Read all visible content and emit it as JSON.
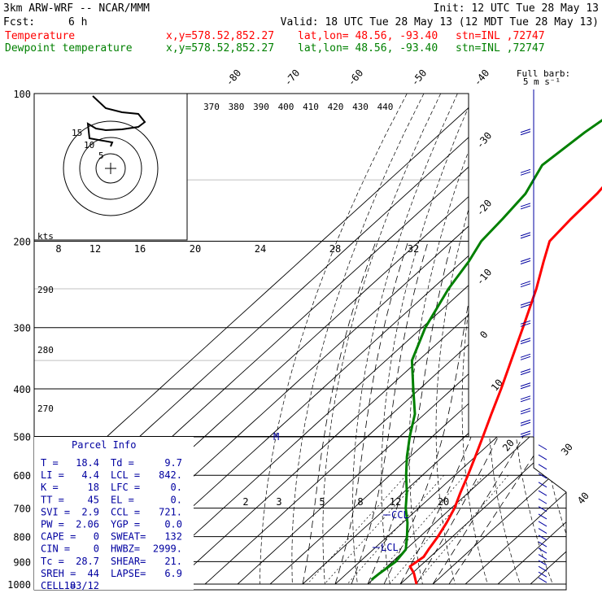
{
  "header": {
    "model": "3km ARW-WRF -- NCAR/MMM",
    "init": "Init: 12 UTC Tue 28 May 13",
    "fcst_label": "Fcst:",
    "fcst_value": "6 h",
    "valid": "Valid: 18 UTC Tue 28 May 13 (12 MDT Tue 28 May 13)",
    "temp_label": "Temperature",
    "dew_label": "Dewpoint temperature",
    "xy": "x,y=578.52,852.27",
    "latlon": "lat,lon= 48.56, -93.40",
    "stn": "stn=INL ,72747"
  },
  "colors": {
    "temperature": "#ff0000",
    "dewpoint": "#008000",
    "parcel_text": "#0000a0"
  },
  "wind_barb_key": {
    "line1": "Full barb:",
    "line2": "5 m s⁻¹"
  },
  "hodograph": {
    "units_label": "kts",
    "rings": [
      "5",
      "10",
      "15"
    ]
  },
  "parcel_info": {
    "title": "Parcel Info",
    "rows": [
      [
        "T  =",
        "18.4",
        "Td =",
        "9.7"
      ],
      [
        "LI =",
        "4.4",
        "LCL =",
        "842."
      ],
      [
        "K  =",
        "18",
        "LFC =",
        "0."
      ],
      [
        "TT =",
        "45",
        "EL  =",
        "0."
      ],
      [
        "SVI =",
        "2.9",
        "CCL =",
        "721."
      ],
      [
        "PW =",
        "2.06",
        "YGP =",
        "0.0"
      ],
      [
        "CAPE =",
        "0",
        "SWEAT=",
        "132"
      ],
      [
        "CIN =",
        "0",
        "HWBZ=",
        "2999."
      ],
      [
        "Tc =",
        "28.7",
        "SHEAR=",
        "21."
      ],
      [
        "SREH =",
        "44",
        "LAPSE=",
        "6.9"
      ],
      [
        "CELL =",
        "183/12",
        "",
        ""
      ]
    ]
  },
  "levels": {
    "ccl": "CCL",
    "lcl": "LCL",
    "m_marker": "M"
  },
  "chart_data": {
    "type": "line",
    "title": "",
    "yaxis_label": "pressure (hPa)",
    "pressure_ticks": [
      "100",
      "200",
      "300",
      "400",
      "500",
      "600",
      "700",
      "800",
      "900",
      "1000"
    ],
    "isotherm_labels": [
      "-80",
      "-70",
      "-60",
      "-50",
      "-40",
      "-30",
      "-20",
      "-10",
      "0",
      "10",
      "20",
      "30",
      "40"
    ],
    "theta_e_labels": [
      "370",
      "380",
      "390",
      "400",
      "410",
      "420",
      "430",
      "440"
    ],
    "mixing_ratio_labels_upper": [
      "8",
      "12",
      "16",
      "20",
      "24",
      "28",
      "32"
    ],
    "mixing_ratio_labels_lower": [
      "2",
      "3",
      "5",
      "8",
      "12",
      "20"
    ],
    "dry_adiabat_labels": [
      "290",
      "280",
      "270"
    ],
    "series": [
      {
        "name": "Temperature",
        "color": "#ff0000",
        "points": [
          [
            1000,
            25.0
          ],
          [
            950,
            20.5
          ],
          [
            920,
            17.0
          ],
          [
            880,
            18.0
          ],
          [
            850,
            17.0
          ],
          [
            800,
            15.5
          ],
          [
            750,
            13.5
          ],
          [
            700,
            11.0
          ],
          [
            650,
            7.5
          ],
          [
            600,
            4.0
          ],
          [
            550,
            0.0
          ],
          [
            500,
            -4.5
          ],
          [
            450,
            -9.5
          ],
          [
            400,
            -15.0
          ],
          [
            350,
            -21.5
          ],
          [
            300,
            -29.0
          ],
          [
            250,
            -38.0
          ],
          [
            220,
            -45.0
          ],
          [
            200,
            -50.0
          ],
          [
            180,
            -51.0
          ],
          [
            160,
            -51.5
          ],
          [
            140,
            -53.5
          ],
          [
            120,
            -56.0
          ],
          [
            100,
            -58.0
          ]
        ]
      },
      {
        "name": "Dewpoint temperature",
        "color": "#008000",
        "points": [
          [
            980,
            9.7
          ],
          [
            950,
            10.0
          ],
          [
            900,
            11.0
          ],
          [
            850,
            10.0
          ],
          [
            800,
            6.0
          ],
          [
            750,
            1.5
          ],
          [
            700,
            -4.0
          ],
          [
            650,
            -9.0
          ],
          [
            600,
            -15.0
          ],
          [
            550,
            -21.0
          ],
          [
            500,
            -27.0
          ],
          [
            450,
            -33.0
          ],
          [
            400,
            -42.0
          ],
          [
            350,
            -52.0
          ],
          [
            300,
            -59.0
          ],
          [
            250,
            -65.0
          ],
          [
            220,
            -68.0
          ],
          [
            200,
            -71.0
          ],
          [
            180,
            -72.0
          ],
          [
            160,
            -73.5
          ],
          [
            140,
            -78.0
          ],
          [
            120,
            -76.0
          ],
          [
            100,
            -72.0
          ]
        ]
      }
    ]
  }
}
